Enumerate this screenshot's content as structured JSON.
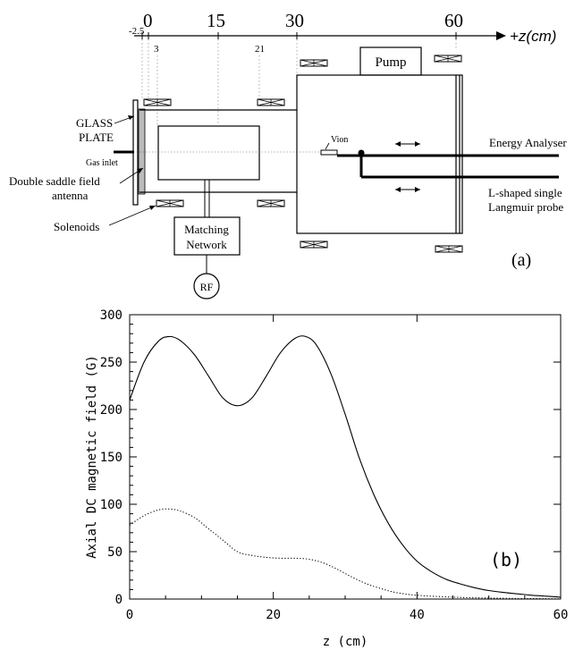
{
  "diagram": {
    "panel_label": "(a)",
    "axis_label": "+z(cm)",
    "axis_ticks": [
      "-2.5",
      "0",
      "15",
      "30",
      "60"
    ],
    "small_ticks": [
      "3",
      "21"
    ],
    "labels": {
      "glass_plate_line1": "GLASS",
      "glass_plate_line2": "PLATE",
      "gas_inlet": "Gas inlet",
      "antenna_line1": "Double saddle field",
      "antenna_line2": "antenna",
      "solenoids": "Solenoids",
      "matching_line1": "Matching",
      "matching_line2": "Network",
      "rf": "RF",
      "pump": "Pump",
      "vion": "Vion",
      "energy_analyser": "Energy Analyser",
      "probe_line1": "L-shaped single",
      "probe_line2": "Langmuir probe"
    }
  },
  "chart_data": {
    "type": "line",
    "panel_label": "(b)",
    "xlabel": "z (cm)",
    "ylabel": "Axial DC magnetic field (G)",
    "xlim": [
      0,
      60
    ],
    "ylim": [
      0,
      300
    ],
    "xticks": [
      0,
      20,
      40,
      60
    ],
    "yticks": [
      0,
      50,
      100,
      150,
      200,
      250,
      300
    ],
    "grid": false,
    "series": [
      {
        "style": "solid",
        "x": [
          0,
          2,
          4,
          5.5,
          7,
          9,
          11,
          13,
          15,
          17,
          19,
          21,
          23,
          24.5,
          26,
          28,
          30,
          32,
          34,
          36,
          38,
          40,
          42,
          44,
          46,
          48,
          50,
          52,
          54,
          56,
          58,
          60
        ],
        "y": [
          210,
          250,
          272,
          277,
          273,
          258,
          235,
          212,
          204,
          212,
          235,
          260,
          275,
          277,
          268,
          238,
          195,
          148,
          110,
          80,
          57,
          40,
          29,
          21,
          16,
          12,
          9,
          7,
          5.5,
          4,
          3,
          2
        ]
      },
      {
        "style": "dotted",
        "x": [
          0,
          2,
          4,
          5.5,
          7,
          9,
          11,
          13,
          15,
          17,
          19,
          21,
          23,
          25,
          27,
          29,
          31,
          33,
          35,
          37,
          40,
          45,
          50,
          55,
          60
        ],
        "y": [
          78,
          88,
          94,
          95,
          93,
          86,
          74,
          62,
          50,
          46,
          44,
          43,
          43,
          42,
          38,
          31,
          23,
          16,
          11,
          7,
          4,
          2,
          1,
          0.5,
          0.2
        ]
      }
    ]
  }
}
